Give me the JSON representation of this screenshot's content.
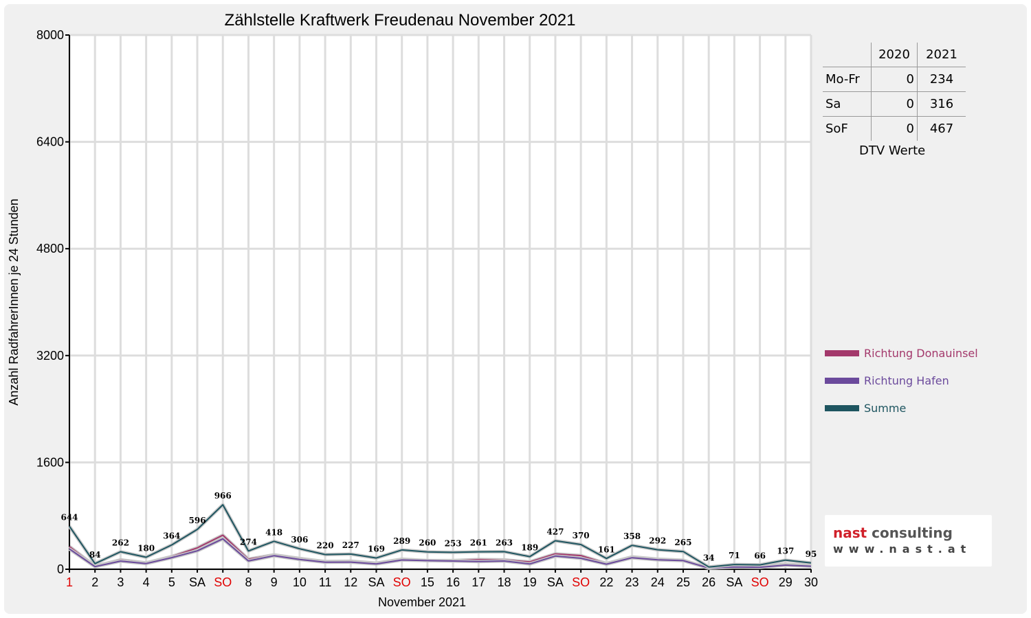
{
  "chart_data": {
    "type": "line",
    "title": "Zählstelle Kraftwerk Freudenau November 2021",
    "xlabel": "November 2021",
    "ylabel": "Anzahl RadfahrerInnen je 24 Stunden",
    "ylim": [
      0,
      8000
    ],
    "yticks": [
      0,
      1600,
      3200,
      4800,
      6400,
      8000
    ],
    "grid": true,
    "legend_position": "right",
    "categories": [
      "1",
      "2",
      "3",
      "4",
      "5",
      "SA",
      "SO",
      "8",
      "9",
      "10",
      "11",
      "12",
      "SA",
      "SO",
      "15",
      "16",
      "17",
      "18",
      "19",
      "SA",
      "SO",
      "22",
      "23",
      "24",
      "25",
      "26",
      "SA",
      "SO",
      "29",
      "30"
    ],
    "red_categories": [
      0,
      6,
      13,
      20,
      27
    ],
    "series": [
      {
        "name": "Richtung Donauinsel",
        "color": "#a3386b",
        "values": [
          340,
          45,
          140,
          95,
          190,
          320,
          510,
          150,
          215,
          160,
          115,
          120,
          90,
          150,
          130,
          130,
          145,
          140,
          110,
          230,
          205,
          85,
          185,
          150,
          135,
          17,
          38,
          36,
          75,
          50
        ]
      },
      {
        "name": "Richtung Hafen",
        "color": "#6b4a9c",
        "values": [
          304,
          39,
          122,
          85,
          174,
          276,
          456,
          124,
          203,
          146,
          105,
          107,
          79,
          139,
          130,
          123,
          116,
          123,
          79,
          197,
          165,
          76,
          173,
          142,
          130,
          17,
          33,
          30,
          62,
          45
        ]
      },
      {
        "name": "Summe",
        "color": "#1e5560",
        "show_labels": true,
        "values": [
          644,
          84,
          262,
          180,
          364,
          596,
          966,
          274,
          418,
          306,
          220,
          227,
          169,
          289,
          260,
          253,
          261,
          263,
          189,
          427,
          370,
          161,
          358,
          292,
          265,
          34,
          71,
          66,
          137,
          95
        ]
      }
    ]
  },
  "dtv_table": {
    "headers": [
      "",
      "2020",
      "2021"
    ],
    "rows": [
      {
        "label": "Mo-Fr",
        "v2020": "0",
        "v2021": "234"
      },
      {
        "label": "Sa",
        "v2020": "0",
        "v2021": "316"
      },
      {
        "label": "SoF",
        "v2020": "0",
        "v2021": "467"
      }
    ],
    "caption": "DTV Werte"
  },
  "logo": {
    "brand_part1": "nast",
    "brand_part2": " consulting",
    "url": "www.nast.at"
  }
}
